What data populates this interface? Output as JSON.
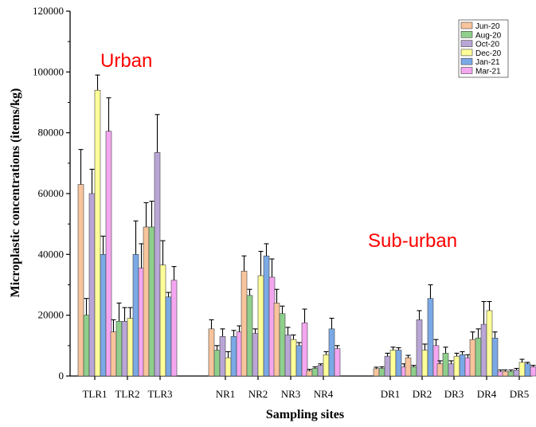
{
  "chart_data": {
    "type": "bar",
    "title": "",
    "xlabel": "Sampling sites",
    "ylabel": "Microplastic concentrations (items/kg)",
    "ylim": [
      0,
      120000
    ],
    "yticks": [
      "0",
      "20000",
      "40000",
      "60000",
      "80000",
      "100000",
      "120000"
    ],
    "legend_position": "top-right",
    "categories": [
      "TLR1",
      "TLR2",
      "TLR3",
      "NR1",
      "NR2",
      "NR3",
      "NR4",
      "DR1",
      "DR2",
      "DR3",
      "DR4",
      "DR5"
    ],
    "groups": [
      {
        "label": "Urban",
        "categories": [
          "TLR1",
          "TLR2",
          "TLR3"
        ],
        "color": "#ff0000"
      },
      {
        "label": "Sub-urban",
        "categories": [
          "DR1",
          "DR2",
          "DR3",
          "DR4",
          "DR5"
        ],
        "color": "#ff0000"
      }
    ],
    "series": [
      {
        "name": "Jun-20",
        "color": "#f8c49c",
        "values": [
          63000,
          14500,
          49000,
          15500,
          34500,
          24000,
          1700,
          2400,
          6000,
          4000,
          12000,
          1500
        ],
        "errors": [
          11500,
          4000,
          8000,
          3000,
          5000,
          4500,
          500,
          500,
          800,
          1000,
          2500,
          500
        ]
      },
      {
        "name": "Aug-20",
        "color": "#8ecf8c",
        "values": [
          20000,
          18000,
          49000,
          8500,
          26500,
          20500,
          2500,
          2500,
          3000,
          7500,
          12500,
          1500
        ],
        "errors": [
          5500,
          6000,
          8500,
          1500,
          2000,
          2500,
          500,
          500,
          500,
          2000,
          3000,
          500
        ]
      },
      {
        "name": "Oct-20",
        "color": "#b9a6d6",
        "values": [
          60000,
          18000,
          73500,
          13000,
          14000,
          13500,
          3500,
          6500,
          18500,
          4000,
          17000,
          2000
        ],
        "errors": [
          8000,
          4500,
          12500,
          2500,
          1500,
          2500,
          500,
          1000,
          3000,
          1000,
          7500,
          500
        ]
      },
      {
        "name": "Dec-20",
        "color": "#ffff99",
        "values": [
          94000,
          19000,
          36500,
          6000,
          33000,
          12000,
          7000,
          8500,
          8500,
          6500,
          21500,
          4500
        ],
        "errors": [
          5000,
          3500,
          8000,
          2000,
          8000,
          1500,
          1000,
          1000,
          2000,
          1000,
          3000,
          1000
        ]
      },
      {
        "name": "Jan-21",
        "color": "#7aa9e6",
        "values": [
          40000,
          40000,
          26000,
          13000,
          39500,
          10000,
          15500,
          8500,
          25500,
          7000,
          12500,
          4000
        ],
        "errors": [
          6000,
          11000,
          1500,
          2000,
          4000,
          1000,
          3500,
          800,
          4500,
          1000,
          2000,
          500
        ]
      },
      {
        "name": "Mar-21",
        "color": "#f4a6f0",
        "values": [
          80500,
          35500,
          31500,
          14500,
          32500,
          17500,
          9000,
          3000,
          10000,
          6000,
          1500,
          3000
        ],
        "errors": [
          11000,
          8000,
          4500,
          2000,
          6000,
          4500,
          1000,
          1000,
          2000,
          1000,
          500,
          500
        ]
      }
    ]
  }
}
